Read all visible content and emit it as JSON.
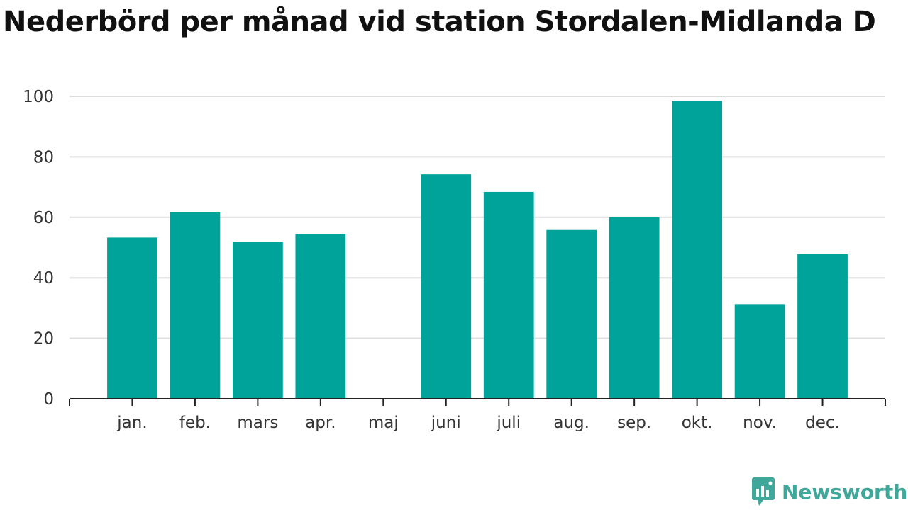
{
  "chart_data": {
    "type": "bar",
    "title": "Nederbörd per månad vid station Stordalen-Midlanda D",
    "categories": [
      "jan.",
      "feb.",
      "mars",
      "apr.",
      "maj",
      "juni",
      "juli",
      "aug.",
      "sep.",
      "okt.",
      "nov.",
      "dec."
    ],
    "values": [
      53.3,
      61.6,
      51.9,
      54.5,
      null,
      74.2,
      68.4,
      55.8,
      60.0,
      98.6,
      31.3,
      47.8
    ],
    "yticks": [
      "0",
      "20",
      "40",
      "60",
      "80",
      "100"
    ],
    "ylim": [
      0,
      100
    ],
    "xlabel": "",
    "ylabel": "",
    "grid": true,
    "bar_color": "#00a39a"
  },
  "brand": {
    "name": "Newsworthy",
    "icon": "newsworthy-logo-icon",
    "color": "#3fa89a"
  }
}
